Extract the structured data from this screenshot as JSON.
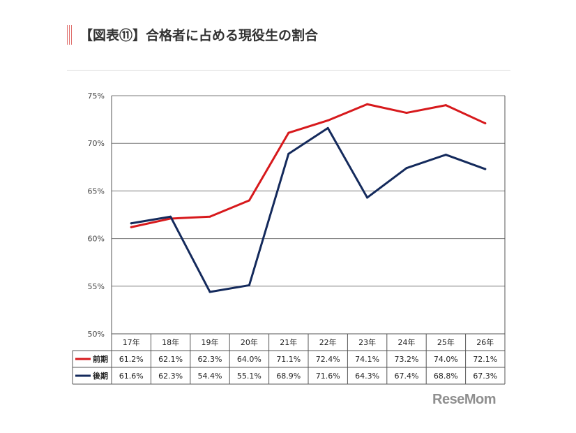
{
  "header": {
    "title": "【図表⑪】合格者に占める現役生の割合"
  },
  "chart_data": {
    "type": "line",
    "categories": [
      "17年",
      "18年",
      "19年",
      "20年",
      "21年",
      "22年",
      "23年",
      "24年",
      "25年",
      "26年"
    ],
    "yticks": [
      "75%",
      "70%",
      "65%",
      "60%",
      "55%",
      "50%"
    ],
    "ylim": [
      50,
      75
    ],
    "grid": true,
    "series": [
      {
        "name": "前期",
        "color": "#d7191c",
        "values": [
          61.2,
          62.1,
          62.3,
          64.0,
          71.1,
          72.4,
          74.1,
          73.2,
          74.0,
          72.1
        ],
        "labels": [
          "61.2%",
          "62.1%",
          "62.3%",
          "64.0%",
          "71.1%",
          "72.4%",
          "74.1%",
          "73.2%",
          "74.0%",
          "72.1%"
        ]
      },
      {
        "name": "後期",
        "color": "#142a5c",
        "values": [
          61.6,
          62.3,
          54.4,
          55.1,
          68.9,
          71.6,
          64.3,
          67.4,
          68.8,
          67.3
        ],
        "labels": [
          "61.6%",
          "62.3%",
          "54.4%",
          "55.1%",
          "68.9%",
          "71.6%",
          "64.3%",
          "67.4%",
          "68.8%",
          "67.3%"
        ]
      }
    ]
  },
  "logo": {
    "text": "ReseMom"
  }
}
